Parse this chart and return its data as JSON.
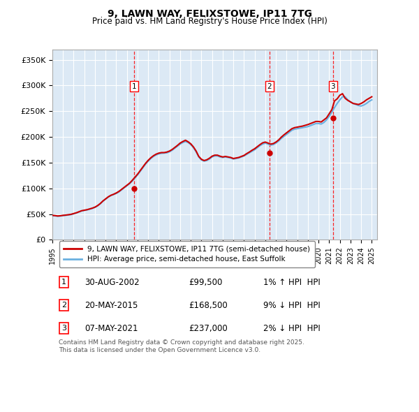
{
  "title": "9, LAWN WAY, FELIXSTOWE, IP11 7TG",
  "subtitle": "Price paid vs. HM Land Registry's House Price Index (HPI)",
  "ylabel_ticks": [
    "£0",
    "£50K",
    "£100K",
    "£150K",
    "£200K",
    "£250K",
    "£300K",
    "£350K"
  ],
  "ytick_values": [
    0,
    50000,
    100000,
    150000,
    200000,
    250000,
    300000,
    350000
  ],
  "ylim": [
    0,
    370000
  ],
  "xlim_start": 1995.0,
  "xlim_end": 2025.5,
  "bg_color": "#dce9f5",
  "grid_color": "#ffffff",
  "legend_entries": [
    "9, LAWN WAY, FELIXSTOWE, IP11 7TG (semi-detached house)",
    "HPI: Average price, semi-detached house, East Suffolk"
  ],
  "property_color": "#cc0000",
  "hpi_color": "#6ab0e0",
  "sale_markers": [
    {
      "num": 1,
      "date": "30-AUG-2002",
      "price": 99500,
      "year": 2002.66,
      "relation": "1% ↑ HPI"
    },
    {
      "num": 2,
      "date": "20-MAY-2015",
      "price": 168500,
      "year": 2015.38,
      "relation": "9% ↓ HPI"
    },
    {
      "num": 3,
      "date": "07-MAY-2021",
      "price": 237000,
      "year": 2021.35,
      "relation": "2% ↓ HPI"
    }
  ],
  "footer_text": "Contains HM Land Registry data © Crown copyright and database right 2025.\nThis data is licensed under the Open Government Licence v3.0.",
  "hpi_data_x": [
    1995.0,
    1995.25,
    1995.5,
    1995.75,
    1996.0,
    1996.25,
    1996.5,
    1996.75,
    1997.0,
    1997.25,
    1997.5,
    1997.75,
    1998.0,
    1998.25,
    1998.5,
    1998.75,
    1999.0,
    1999.25,
    1999.5,
    1999.75,
    2000.0,
    2000.25,
    2000.5,
    2000.75,
    2001.0,
    2001.25,
    2001.5,
    2001.75,
    2002.0,
    2002.25,
    2002.5,
    2002.75,
    2003.0,
    2003.25,
    2003.5,
    2003.75,
    2004.0,
    2004.25,
    2004.5,
    2004.75,
    2005.0,
    2005.25,
    2005.5,
    2005.75,
    2006.0,
    2006.25,
    2006.5,
    2006.75,
    2007.0,
    2007.25,
    2007.5,
    2007.75,
    2008.0,
    2008.25,
    2008.5,
    2008.75,
    2009.0,
    2009.25,
    2009.5,
    2009.75,
    2010.0,
    2010.25,
    2010.5,
    2010.75,
    2011.0,
    2011.25,
    2011.5,
    2011.75,
    2012.0,
    2012.25,
    2012.5,
    2012.75,
    2013.0,
    2013.25,
    2013.5,
    2013.75,
    2014.0,
    2014.25,
    2014.5,
    2014.75,
    2015.0,
    2015.25,
    2015.5,
    2015.75,
    2016.0,
    2016.25,
    2016.5,
    2016.75,
    2017.0,
    2017.25,
    2017.5,
    2017.75,
    2018.0,
    2018.25,
    2018.5,
    2018.75,
    2019.0,
    2019.25,
    2019.5,
    2019.75,
    2020.0,
    2020.25,
    2020.5,
    2020.75,
    2021.0,
    2021.25,
    2021.5,
    2021.75,
    2022.0,
    2022.25,
    2022.5,
    2022.75,
    2023.0,
    2023.25,
    2023.5,
    2023.75,
    2024.0,
    2024.25,
    2024.5,
    2024.75,
    2025.0
  ],
  "hpi_data_y": [
    47000,
    46500,
    45800,
    46200,
    47000,
    47500,
    48200,
    49000,
    50500,
    52000,
    54000,
    56000,
    57000,
    58000,
    59500,
    61000,
    63000,
    66000,
    70000,
    75000,
    79000,
    83000,
    86000,
    88000,
    90000,
    93000,
    97000,
    101000,
    105000,
    109000,
    114000,
    120000,
    126000,
    133000,
    140000,
    147000,
    153000,
    158000,
    162000,
    165000,
    167000,
    168000,
    168500,
    169000,
    171000,
    174000,
    178000,
    182000,
    186000,
    189000,
    191000,
    189000,
    185000,
    179000,
    171000,
    161000,
    155000,
    153000,
    154000,
    157000,
    161000,
    163000,
    163000,
    161000,
    160000,
    161000,
    160000,
    159000,
    157000,
    158000,
    159000,
    161000,
    163000,
    166000,
    169000,
    172000,
    175000,
    179000,
    183000,
    186000,
    188000,
    186000,
    184000,
    185000,
    188000,
    192000,
    197000,
    201000,
    205000,
    209000,
    213000,
    215000,
    216000,
    217000,
    218000,
    219000,
    220000,
    222000,
    224000,
    226000,
    226000,
    225000,
    228000,
    233000,
    240000,
    248000,
    257000,
    265000,
    272000,
    278000,
    278000,
    272000,
    268000,
    265000,
    263000,
    261000,
    260000,
    262000,
    265000,
    269000,
    272000
  ],
  "property_data_x": [
    1995.0,
    1995.25,
    1995.5,
    1995.75,
    1996.0,
    1996.25,
    1996.5,
    1996.75,
    1997.0,
    1997.25,
    1997.5,
    1997.75,
    1998.0,
    1998.25,
    1998.5,
    1998.75,
    1999.0,
    1999.25,
    1999.5,
    1999.75,
    2000.0,
    2000.25,
    2000.5,
    2000.75,
    2001.0,
    2001.25,
    2001.5,
    2001.75,
    2002.0,
    2002.25,
    2002.5,
    2002.75,
    2003.0,
    2003.25,
    2003.5,
    2003.75,
    2004.0,
    2004.25,
    2004.5,
    2004.75,
    2005.0,
    2005.25,
    2005.5,
    2005.75,
    2006.0,
    2006.25,
    2006.5,
    2006.75,
    2007.0,
    2007.25,
    2007.5,
    2007.75,
    2008.0,
    2008.25,
    2008.5,
    2008.75,
    2009.0,
    2009.25,
    2009.5,
    2009.75,
    2010.0,
    2010.25,
    2010.5,
    2010.75,
    2011.0,
    2011.25,
    2011.5,
    2011.75,
    2012.0,
    2012.25,
    2012.5,
    2012.75,
    2013.0,
    2013.25,
    2013.5,
    2013.75,
    2014.0,
    2014.25,
    2014.5,
    2014.75,
    2015.0,
    2015.25,
    2015.5,
    2015.75,
    2016.0,
    2016.25,
    2016.5,
    2016.75,
    2017.0,
    2017.25,
    2017.5,
    2017.75,
    2018.0,
    2018.25,
    2018.5,
    2018.75,
    2019.0,
    2019.25,
    2019.5,
    2019.75,
    2020.0,
    2020.25,
    2020.5,
    2020.75,
    2021.0,
    2021.25,
    2021.5,
    2021.75,
    2022.0,
    2022.25,
    2022.5,
    2022.75,
    2023.0,
    2023.25,
    2023.5,
    2023.75,
    2024.0,
    2024.25,
    2024.5,
    2024.75,
    2025.0
  ],
  "property_data_y": [
    47500,
    47000,
    46300,
    46700,
    47500,
    48000,
    48700,
    49500,
    51000,
    52500,
    54500,
    56500,
    57500,
    58500,
    60000,
    61500,
    63500,
    66500,
    70500,
    75500,
    79500,
    83500,
    86500,
    88500,
    91000,
    94000,
    98000,
    102000,
    106000,
    110000,
    115500,
    121500,
    127500,
    134500,
    141500,
    148500,
    154500,
    159500,
    163500,
    166500,
    168500,
    169500,
    169500,
    170500,
    172500,
    175500,
    179500,
    183500,
    188000,
    191000,
    193500,
    190500,
    186500,
    180500,
    172500,
    162000,
    156500,
    154000,
    155500,
    158500,
    162500,
    164500,
    164500,
    162500,
    161000,
    162000,
    161000,
    160000,
    158000,
    159000,
    160000,
    162000,
    164000,
    167500,
    170500,
    174000,
    177000,
    181000,
    185000,
    188500,
    190000,
    188000,
    186000,
    187000,
    190000,
    194000,
    199500,
    204000,
    208000,
    212000,
    216000,
    218000,
    219000,
    220000,
    221000,
    222500,
    224000,
    226000,
    228000,
    230000,
    230000,
    229000,
    233000,
    237000,
    245000,
    253000,
    270000,
    274000,
    281000,
    284000,
    275000,
    271000,
    268000,
    265000,
    264000,
    263000,
    265000,
    268000,
    272000,
    275000,
    278000
  ],
  "sale_dot_years": [
    2002.66,
    2015.38,
    2021.35
  ],
  "sale_dot_prices": [
    99500,
    168500,
    237000
  ]
}
